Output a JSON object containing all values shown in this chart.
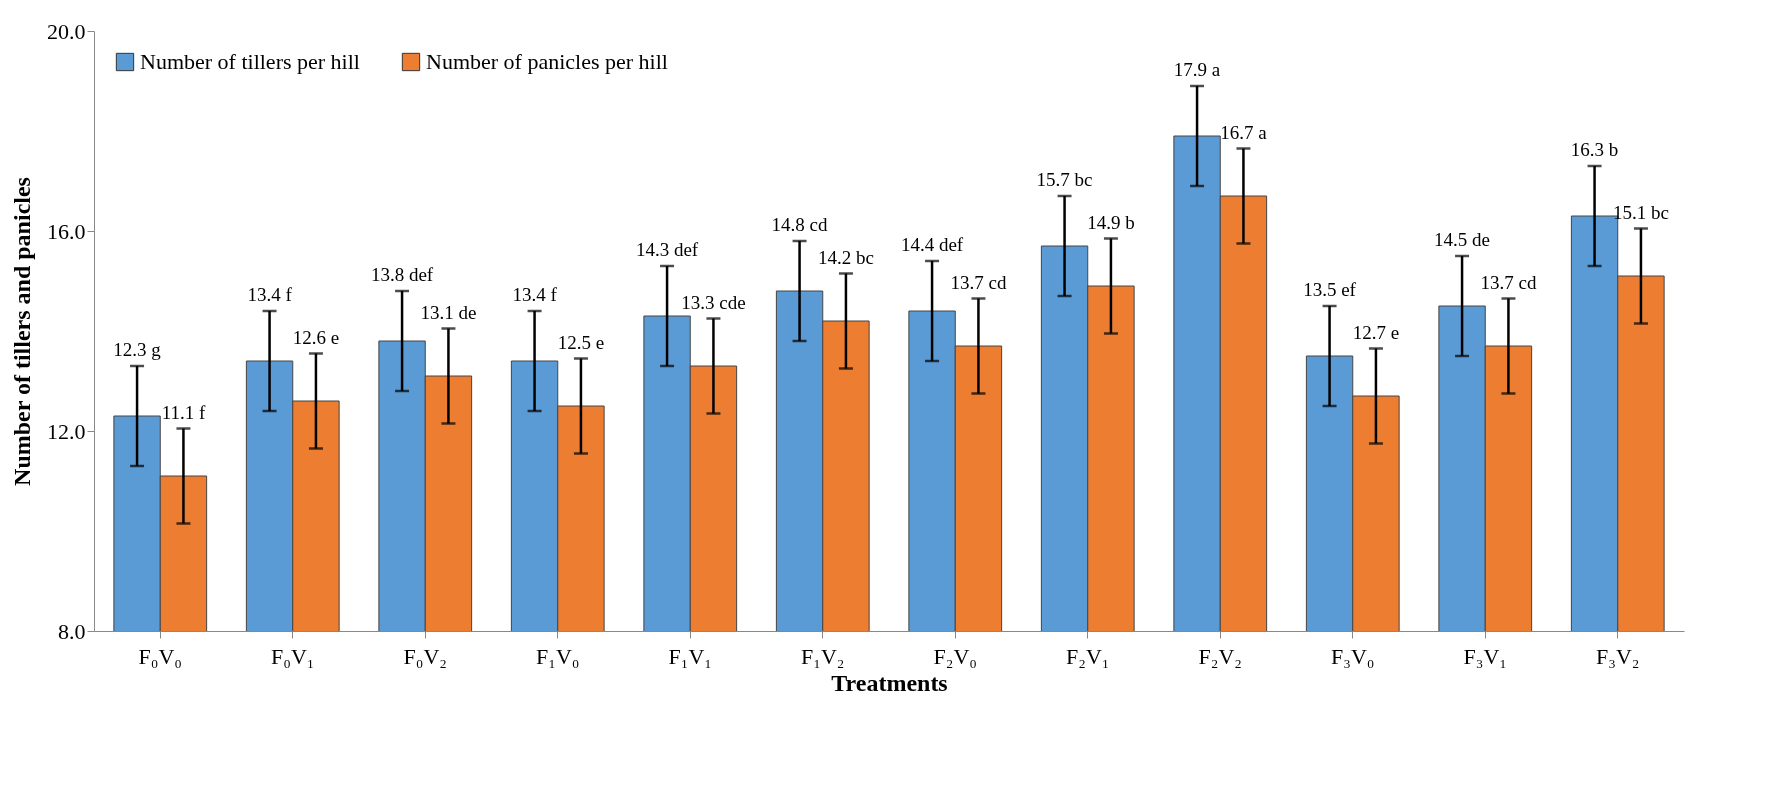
{
  "chart_data": {
    "type": "bar",
    "xlabel": "Treatments",
    "ylabel": "Number of tillers and panicles",
    "categories": [
      "F₀V₀",
      "F₀V₁",
      "F₀V₂",
      "F₁V₀",
      "F₁V₁",
      "F₁V₂",
      "F₂V₀",
      "F₂V₁",
      "F₂V₂",
      "F₃V₀",
      "F₃V₁",
      "F₃V₂"
    ],
    "series": [
      {
        "name": "Number of tillers per hill",
        "color": "#5b9bd5",
        "values": [
          12.3,
          13.4,
          13.8,
          13.4,
          14.3,
          14.8,
          14.4,
          15.7,
          17.9,
          13.5,
          14.5,
          16.3
        ],
        "errors": [
          1.0,
          1.0,
          1.0,
          1.0,
          1.0,
          1.0,
          1.0,
          1.0,
          1.0,
          1.0,
          1.0,
          1.0
        ],
        "value_labels": [
          "12.3 g",
          "13.4 f",
          "13.8 def",
          "13.4 f",
          "14.3 def",
          "14.8 cd",
          "14.4 def",
          "15.7 bc",
          "17.9 a",
          "13.5 ef",
          "14.5 de",
          "16.3 b"
        ]
      },
      {
        "name": "Number of panicles per hill",
        "color": "#ed7d31",
        "values": [
          11.1,
          12.6,
          13.1,
          12.5,
          13.3,
          14.2,
          13.7,
          14.9,
          16.7,
          12.7,
          13.7,
          15.1
        ],
        "errors": [
          0.95,
          0.95,
          0.95,
          0.95,
          0.95,
          0.95,
          0.95,
          0.95,
          0.95,
          0.95,
          0.95,
          0.95
        ],
        "value_labels": [
          "11.1 f",
          "12.6 e",
          "13.1 de",
          "12.5 e",
          "13.3 cde",
          "14.2 bc",
          "13.7 cd",
          "14.9 b",
          "16.7 a",
          "12.7 e",
          "13.7 cd",
          "15.1 bc"
        ]
      }
    ],
    "ylim": [
      8,
      20
    ],
    "yticks": [
      {
        "value": 8,
        "label": "8.0"
      },
      {
        "value": 12,
        "label": "12.0"
      },
      {
        "value": 16,
        "label": "16.0"
      },
      {
        "value": 20,
        "label": "20.0"
      }
    ],
    "grid": false,
    "legend": "top left"
  }
}
